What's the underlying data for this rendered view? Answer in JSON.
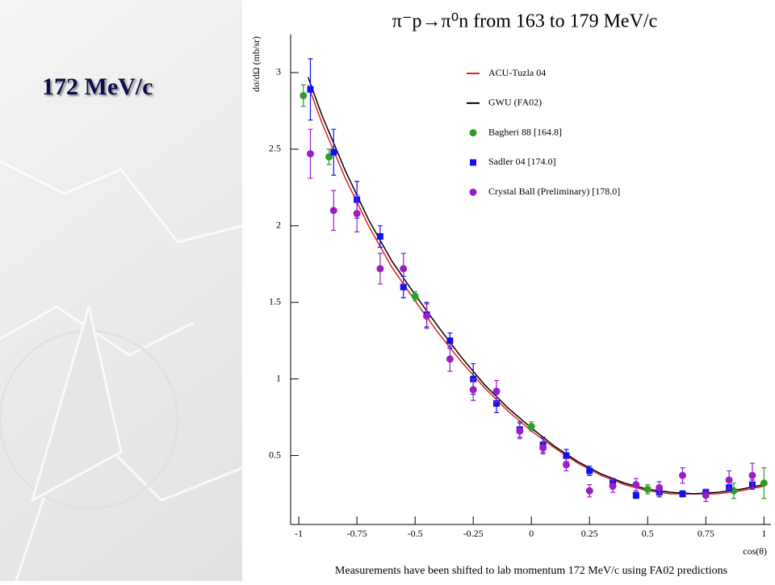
{
  "slide": {
    "heading": "172 MeV/c"
  },
  "chart_data": {
    "type": "scatter",
    "title": "π⁻p→π⁰n from 163 to 179 MeV/c",
    "ylabel": "dσ/dΩ (mb/sr)",
    "xlabel": "cos(θ)",
    "footnote": "Measurements have been shifted to lab momentum 172 MeV/c using FA02 predictions",
    "xlim": [
      -1.035,
      1.03
    ],
    "ylim": [
      0.05,
      3.25
    ],
    "xticks": [
      -1,
      -0.75,
      -0.5,
      -0.25,
      0,
      0.25,
      0.5,
      0.75,
      1
    ],
    "yticks": [
      0.5,
      1,
      1.5,
      2,
      2.5,
      3
    ],
    "grid": false,
    "legend": "upper right",
    "series": [
      {
        "name": "ACU-Tuzla 04",
        "color": "#e02020",
        "style": "line",
        "x": [
          -0.96,
          -0.9,
          -0.8,
          -0.7,
          -0.6,
          -0.5,
          -0.4,
          -0.3,
          -0.2,
          -0.1,
          0,
          0.1,
          0.2,
          0.3,
          0.4,
          0.5,
          0.6,
          0.7,
          0.8,
          0.9,
          1.0
        ],
        "values": [
          2.92,
          2.67,
          2.31,
          2.0,
          1.73,
          1.51,
          1.3,
          1.11,
          0.94,
          0.79,
          0.66,
          0.55,
          0.45,
          0.37,
          0.31,
          0.27,
          0.25,
          0.25,
          0.25,
          0.27,
          0.3
        ]
      },
      {
        "name": "GWU (FA02)",
        "color": "#000000",
        "style": "line",
        "x": [
          -0.96,
          -0.9,
          -0.8,
          -0.7,
          -0.6,
          -0.5,
          -0.4,
          -0.3,
          -0.2,
          -0.1,
          0,
          0.1,
          0.2,
          0.3,
          0.4,
          0.5,
          0.6,
          0.7,
          0.8,
          0.9,
          1.0
        ],
        "values": [
          2.97,
          2.72,
          2.36,
          2.04,
          1.77,
          1.55,
          1.34,
          1.14,
          0.96,
          0.81,
          0.68,
          0.56,
          0.46,
          0.38,
          0.32,
          0.28,
          0.26,
          0.25,
          0.26,
          0.28,
          0.31
        ]
      },
      {
        "name": "Bagheri 88  [164.8]",
        "color": "#2aa02a",
        "style": "circle",
        "x": [
          -0.98,
          -0.87,
          -0.5,
          0,
          0.5,
          0.87,
          1.0
        ],
        "values": [
          2.85,
          2.45,
          1.54,
          0.69,
          0.28,
          0.27,
          0.32
        ],
        "errors": [
          0.07,
          0.05,
          0.03,
          0.03,
          0.03,
          0.05,
          0.1
        ]
      },
      {
        "name": "Sadler 04  [174.0]",
        "color": "#1010f0",
        "style": "square",
        "x": [
          -0.95,
          -0.85,
          -0.75,
          -0.65,
          -0.55,
          -0.45,
          -0.35,
          -0.25,
          -0.15,
          -0.05,
          0.05,
          0.15,
          0.25,
          0.35,
          0.45,
          0.55,
          0.65,
          0.75,
          0.85,
          0.95
        ],
        "values": [
          2.89,
          2.48,
          2.17,
          1.93,
          1.6,
          1.42,
          1.25,
          1.0,
          0.84,
          0.67,
          0.57,
          0.5,
          0.4,
          0.32,
          0.24,
          0.26,
          0.25,
          0.26,
          0.29,
          0.31
        ],
        "errors": [
          0.2,
          0.15,
          0.12,
          0.07,
          0.07,
          0.08,
          0.05,
          0.1,
          0.06,
          0.05,
          0.05,
          0.04,
          0.03,
          0.03,
          0.02,
          0.03,
          0.02,
          0.02,
          0.02,
          0.03
        ]
      },
      {
        "name": "Crystal Ball (Preliminary)  [178.0]",
        "color": "#9a1ec8",
        "style": "circle",
        "x": [
          -0.95,
          -0.85,
          -0.75,
          -0.65,
          -0.55,
          -0.45,
          -0.35,
          -0.25,
          -0.15,
          -0.05,
          0.05,
          0.15,
          0.25,
          0.35,
          0.45,
          0.55,
          0.65,
          0.75,
          0.85,
          0.95
        ],
        "values": [
          2.47,
          2.1,
          2.08,
          1.72,
          1.72,
          1.41,
          1.13,
          0.93,
          0.92,
          0.66,
          0.55,
          0.44,
          0.27,
          0.3,
          0.31,
          0.29,
          0.37,
          0.24,
          0.34,
          0.37
        ],
        "errors": [
          0.16,
          0.13,
          0.12,
          0.1,
          0.1,
          0.08,
          0.08,
          0.07,
          0.07,
          0.05,
          0.04,
          0.04,
          0.04,
          0.04,
          0.04,
          0.04,
          0.05,
          0.04,
          0.06,
          0.08
        ]
      }
    ]
  }
}
